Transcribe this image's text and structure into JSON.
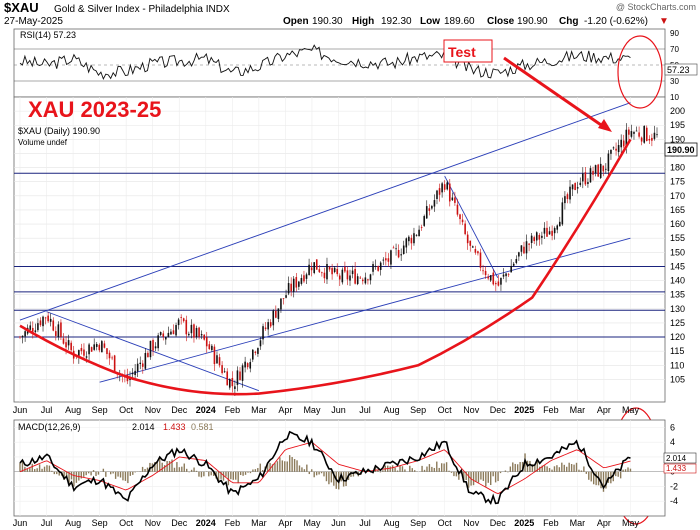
{
  "header": {
    "symbol": "$XAU",
    "name": "Gold & Silver Index - Philadelphia INDX",
    "date": "27-May-2025",
    "watermark": "@ StockCharts.com",
    "open_label": "Open",
    "open": "190.30",
    "high_label": "High",
    "high": "192.30",
    "low_label": "Low",
    "low": "189.60",
    "close_label": "Close",
    "close": "190.90",
    "chg_label": "Chg",
    "chg": "-1.20 (-0.62%)",
    "chg_arrow": "▼"
  },
  "annotations": {
    "title": "XAU 2023-25",
    "test_label": "Test"
  },
  "colors": {
    "accent_red": "#e8141b",
    "trend_blue": "#2b3fb8",
    "candle_up": "#111111",
    "candle_down": "#cc1111",
    "volume_bar": "#8b7a5a"
  },
  "chart_data": [
    {
      "type": "line",
      "panel": "RSI",
      "label": "RSI(14) 57.23",
      "current_value_label": "57.23",
      "ylim": [
        10,
        95
      ],
      "y_ticks": [
        "90",
        "70",
        "50",
        "30",
        "10"
      ],
      "reference_lines": [
        70,
        30
      ],
      "x": [
        "Jun 2023",
        "Jul 2023",
        "Aug 2023",
        "Sep 2023",
        "Oct 2023",
        "Nov 2023",
        "Dec 2023",
        "2024",
        "Feb 2024",
        "Mar 2024",
        "Apr 2024",
        "May 2024",
        "Jun 2024",
        "Jul 2024",
        "Aug 2024",
        "Sep 2024",
        "Oct 2024",
        "Nov 2024",
        "Dec 2024",
        "2025",
        "Feb 2025",
        "Mar 2025",
        "Apr 2025",
        "May 2025"
      ],
      "values": [
        55,
        50,
        58,
        40,
        42,
        52,
        55,
        58,
        40,
        48,
        62,
        68,
        58,
        54,
        52,
        60,
        62,
        44,
        40,
        50,
        56,
        62,
        60,
        57.23
      ]
    },
    {
      "type": "candlestick",
      "panel": "price",
      "label": "$XAU (Daily) 190.90",
      "volume_label": "Volume undef",
      "current_value_label": "190.90",
      "ylim": [
        97,
        205
      ],
      "y_ticks": [
        "200",
        "195",
        "190",
        "185",
        "180",
        "175",
        "170",
        "165",
        "160",
        "155",
        "150",
        "145",
        "140",
        "135",
        "130",
        "125",
        "120",
        "115",
        "110",
        "105"
      ],
      "x_ticks": [
        "Jun",
        "Jul",
        "Aug",
        "Sep",
        "Oct",
        "Nov",
        "Dec",
        "2024",
        "Feb",
        "Mar",
        "Apr",
        "May",
        "Jun",
        "Jul",
        "Aug",
        "Sep",
        "Oct",
        "Nov",
        "Dec",
        "2025",
        "Feb",
        "Mar",
        "Apr",
        "May"
      ],
      "x": [
        "Jun 2023",
        "Jul 2023",
        "Aug 2023",
        "Sep 2023",
        "Oct 2023",
        "Nov 2023",
        "Dec 2023",
        "2024",
        "Feb 2024",
        "Mar 2024",
        "Apr 2024",
        "May 2024",
        "Jun 2024",
        "Jul 2024",
        "Aug 2024",
        "Sep 2024",
        "Oct 2024",
        "Nov 2024",
        "Dec 2024",
        "2025",
        "Feb 2025",
        "Mar 2025",
        "Apr 2025",
        "May 2025",
        "end"
      ],
      "close": [
        120,
        128,
        114,
        118,
        104,
        117,
        125,
        118,
        103,
        119,
        135,
        146,
        141,
        142,
        148,
        158,
        175,
        150,
        138,
        152,
        158,
        175,
        180,
        193,
        190.9
      ],
      "horizontal_lines": [
        178,
        145,
        136,
        129.5,
        120
      ],
      "trend_lines": [
        {
          "from": [
            "Jun 2023",
            126
          ],
          "to": [
            "May 2025",
            203
          ]
        },
        {
          "from": [
            "Sep 2023",
            104
          ],
          "to": [
            "May 2025",
            155
          ]
        },
        {
          "from": [
            "Jul 2023",
            129
          ],
          "to": [
            "Mar 2024",
            101
          ]
        },
        {
          "from": [
            "Oct 2024",
            177
          ],
          "to": [
            "Dec 2024",
            141
          ]
        }
      ],
      "parabola_support": [
        [
          "Jun 2023",
          124
        ],
        [
          "Oct 2023",
          106
        ],
        [
          "Mar 2024",
          100
        ],
        [
          "Sep 2024",
          110
        ],
        [
          "Jan 2025",
          134
        ],
        [
          "May 2025",
          190
        ]
      ]
    },
    {
      "type": "line",
      "panel": "MACD",
      "label": "MACD(12,26,9)",
      "macd_value": "2.014",
      "signal_value": "1.433",
      "hist_value": "0.581",
      "ylim": [
        -6,
        7
      ],
      "y_ticks": [
        "6",
        "4",
        "2",
        "0",
        "-2",
        "-4"
      ],
      "x_ticks": [
        "Jun",
        "Jul",
        "Aug",
        "Sep",
        "Oct",
        "Nov",
        "Dec",
        "2024",
        "Feb",
        "Mar",
        "Apr",
        "May",
        "Jun",
        "Jul",
        "Aug",
        "Sep",
        "Oct",
        "Nov",
        "Dec",
        "2025",
        "Feb",
        "Mar",
        "Apr",
        "May"
      ],
      "x": [
        "Jun 2023",
        "Jul 2023",
        "Aug 2023",
        "Sep 2023",
        "Oct 2023",
        "Nov 2023",
        "Dec 2023",
        "2024",
        "Feb 2024",
        "Mar 2024",
        "Apr 2024",
        "May 2024",
        "Jun 2024",
        "Jul 2024",
        "Aug 2024",
        "Sep 2024",
        "Oct 2024",
        "Nov 2024",
        "Dec 2024",
        "2025",
        "Feb 2025",
        "Mar 2025",
        "Apr 2025",
        "May 2025"
      ],
      "macd": [
        1,
        2,
        -2,
        -1,
        -4,
        1,
        3,
        1,
        -3,
        -1,
        5,
        4,
        -1,
        0,
        1,
        2,
        4,
        -3,
        -4,
        1,
        2,
        4,
        -2,
        2.014
      ],
      "signal": [
        0,
        1.5,
        -0.5,
        -1.2,
        -2.5,
        -0.5,
        2,
        1.5,
        -1.5,
        -1.5,
        3,
        4,
        1,
        0,
        0.5,
        1.5,
        3,
        -1,
        -3,
        -1,
        1.5,
        3,
        0.5,
        1.433
      ]
    }
  ]
}
